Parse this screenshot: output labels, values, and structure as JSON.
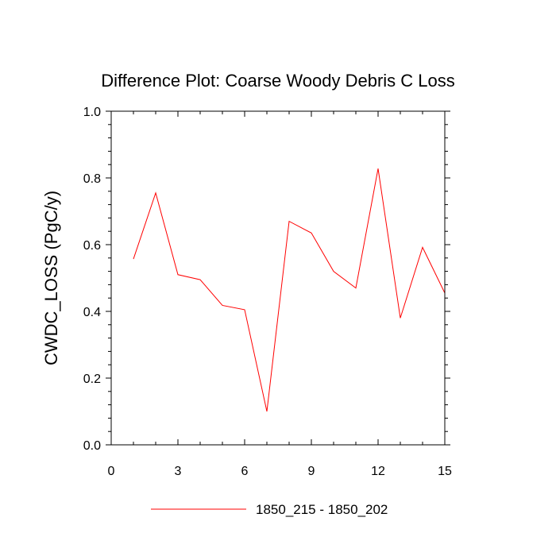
{
  "chart_data": {
    "type": "line",
    "title": "Difference Plot: Coarse Woody Debris C Loss",
    "xlabel": "",
    "ylabel": "CWDC_LOSS  (PgC/y)",
    "xlim": [
      0,
      15
    ],
    "ylim": [
      0.0,
      1.0
    ],
    "xticks": [
      0,
      3,
      6,
      9,
      12,
      15
    ],
    "xtick_labels": [
      "0",
      "3",
      "6",
      "9",
      "12",
      "15"
    ],
    "yticks": [
      0.0,
      0.2,
      0.4,
      0.6,
      0.8,
      1.0
    ],
    "ytick_labels": [
      "0.0",
      "0.2",
      "0.4",
      "0.6",
      "0.8",
      "1.0"
    ],
    "grid": false,
    "legend_position": "bottom-center",
    "series": [
      {
        "name": "1850_215 - 1850_202",
        "color": "#ff0000",
        "x": [
          1,
          2,
          3,
          4,
          5,
          6,
          7,
          8,
          9,
          10,
          11,
          12,
          13,
          14,
          15
        ],
        "y": [
          0.557,
          0.755,
          0.51,
          0.495,
          0.418,
          0.405,
          0.1,
          0.67,
          0.635,
          0.52,
          0.47,
          0.828,
          0.38,
          0.592,
          0.455
        ]
      }
    ]
  }
}
